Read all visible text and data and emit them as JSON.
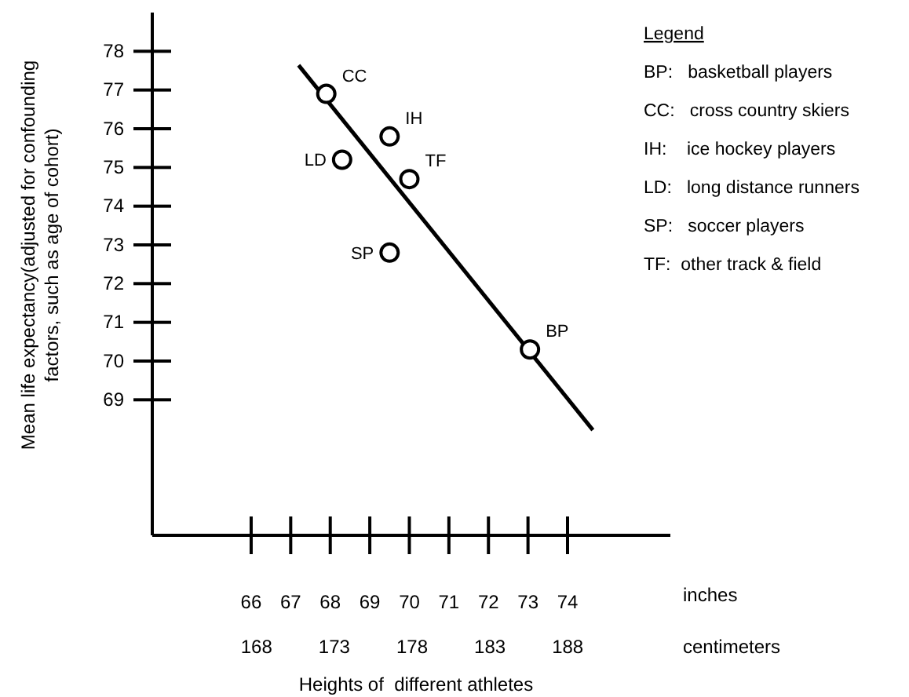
{
  "chart_data": {
    "type": "scatter",
    "xlabel": "Heights of  different athletes",
    "ylabel": "Mean life expectancy(adjusted for confounding factors, such as age of cohort)",
    "xlim": [
      63.5,
      76.6
    ],
    "xticks": [
      66,
      67,
      68,
      69,
      70,
      71,
      72,
      73,
      74
    ],
    "x2lim": [
      161.3,
      194.6
    ],
    "x2ticks": [
      168,
      173,
      178,
      183,
      188
    ],
    "ylim": [
      65.5,
      79
    ],
    "yticks": [
      69,
      70,
      71,
      72,
      73,
      74,
      75,
      76,
      77,
      78
    ],
    "grid": false,
    "series": [
      {
        "color": "#000000",
        "marker": "circle",
        "x": [
          67.9,
          69.5,
          68.3,
          70.0,
          69.5,
          73.05
        ],
        "values": [
          76.9,
          75.8,
          75.2,
          74.7,
          72.8,
          70.3
        ]
      },
      {
        "type": "line",
        "color": "#000000",
        "marker": "none",
        "x": [
          67.2,
          74.64
        ],
        "values": [
          77.64,
          68.22
        ]
      }
    ],
    "annotations": [
      "Legend",
      "BP:   basketball players",
      "CC:   cross country skiers",
      "IH:    ice hockey players",
      "LD:   long distance runners",
      "SP:   soccer players",
      "TF:  other track & field",
      "inches",
      "centimeters",
      {
        "text": "CC",
        "x": 67.9,
        "y": 76.9
      },
      {
        "text": "IH",
        "x": 69.5,
        "y": 75.8
      },
      {
        "text": "LD",
        "x": 68.3,
        "y": 75.2
      },
      {
        "text": "TF",
        "x": 70.0,
        "y": 74.7
      },
      {
        "text": "SP",
        "x": 69.5,
        "y": 72.8
      },
      {
        "text": "BP",
        "x": 73.05,
        "y": 70.3
      }
    ]
  }
}
